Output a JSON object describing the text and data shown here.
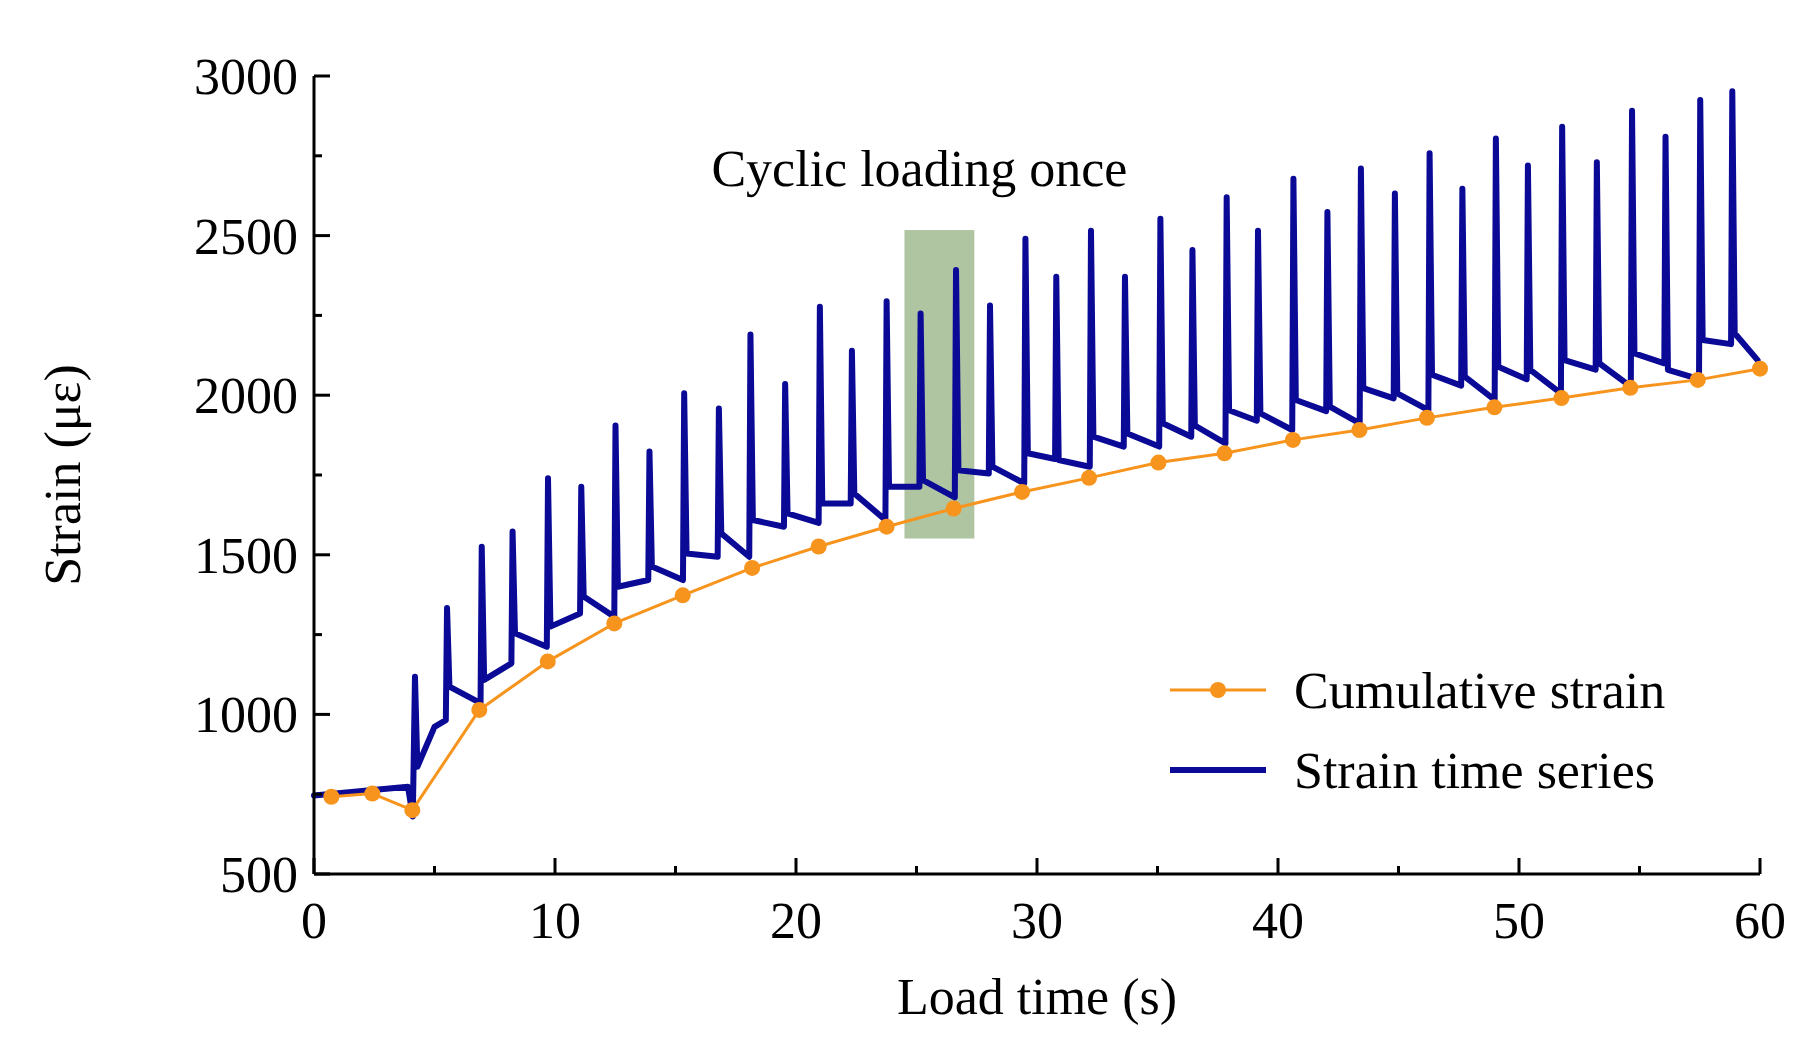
{
  "chart_data": {
    "type": "line",
    "xlabel": "Load time (s)",
    "ylabel": "Strain (με)",
    "xlim": [
      0,
      60
    ],
    "xticks": [
      0,
      {
        "value": 5,
        "label": null
      },
      10,
      {
        "value": 15,
        "label": null
      },
      20,
      {
        "value": 25,
        "label": null
      },
      30,
      {
        "value": 35,
        "label": null
      },
      40,
      {
        "value": 45,
        "label": null
      },
      50,
      {
        "value": 55,
        "label": null
      },
      60
    ],
    "ylim": [
      500,
      3000
    ],
    "yticks": [
      500,
      {
        "value": 750,
        "label": null
      },
      1000,
      {
        "value": 1250,
        "label": null
      },
      1500,
      {
        "value": 1750,
        "label": null
      },
      2000,
      {
        "value": 2250,
        "label": null
      },
      2500,
      {
        "value": 2750,
        "label": null
      },
      3000
    ],
    "legend": "bottom right",
    "grid": false,
    "bands": [
      {
        "axis": "x",
        "from": 24.5,
        "to": 27.4,
        "label": "Cyclic loading once",
        "color": "#7a9c62"
      }
    ],
    "series": [
      {
        "name": "Cumulative strain",
        "color": "#f7941d",
        "marker": "circle",
        "x": [
          0.72,
          2.42,
          4.08,
          6.86,
          9.7,
          12.46,
          15.3,
          18.18,
          20.94,
          23.76,
          26.54,
          29.38,
          32.16,
          35.04,
          37.78,
          40.62,
          43.38,
          46.18,
          48.98,
          51.76,
          54.62,
          57.42,
          60
        ],
        "values": [
          742,
          752,
          700,
          1014,
          1166,
          1285,
          1373,
          1459,
          1526,
          1588,
          1645,
          1697,
          1741,
          1789,
          1818,
          1860,
          1891,
          1929,
          1962,
          1991,
          2023,
          2048,
          2083
        ]
      },
      {
        "name": "Strain time series",
        "color": "#0a0a96",
        "marker": "none",
        "x": [
          0,
          2,
          3.9,
          4.1,
          4.19,
          4.29,
          5.0,
          5.47,
          5.52,
          5.62,
          6.91,
          6.96,
          7.06,
          8.19,
          8.24,
          8.34,
          9.66,
          9.71,
          9.81,
          11.04,
          11.09,
          11.19,
          12.46,
          12.51,
          12.61,
          13.87,
          13.92,
          14.02,
          15.31,
          15.36,
          15.46,
          16.75,
          16.8,
          16.9,
          18.06,
          18.11,
          18.21,
          19.5,
          19.55,
          19.65,
          20.94,
          20.99,
          21.09,
          22.27,
          22.32,
          22.42,
          23.71,
          23.76,
          23.86,
          25.12,
          25.17,
          25.27,
          26.59,
          26.64,
          26.74,
          28.0,
          28.05,
          28.15,
          29.47,
          29.52,
          29.62,
          30.75,
          30.8,
          30.9,
          32.19,
          32.24,
          32.34,
          33.6,
          33.65,
          33.75,
          35.07,
          35.12,
          35.22,
          36.4,
          36.45,
          36.55,
          37.82,
          37.87,
          37.97,
          39.12,
          39.17,
          39.27,
          40.59,
          40.64,
          40.74,
          42.0,
          42.05,
          42.15,
          43.39,
          43.44,
          43.54,
          44.8,
          44.85,
          44.95,
          46.24,
          46.29,
          46.39,
          47.6,
          47.65,
          47.75,
          48.99,
          49.04,
          49.14,
          50.32,
          50.37,
          50.47,
          51.74,
          51.79,
          51.89,
          53.18,
          53.23,
          53.33,
          54.64,
          54.69,
          54.79,
          56.03,
          56.08,
          56.18,
          57.47,
          57.52,
          57.62,
          58.8,
          58.85,
          58.95,
          59.9
        ],
        "values": [
          746,
          760,
          773,
          680,
          1118,
          836,
          961,
          982,
          1333,
          1087,
          1035,
          1525,
          1108,
          1160,
          1573,
          1254,
          1212,
          1740,
          1275,
          1316,
          1713,
          1369,
          1306,
          1905,
          1400,
          1421,
          1824,
          1463,
          1421,
          2006,
          1504,
          1494,
          1958,
          1567,
          1494,
          2190,
          1609,
          1588,
          2035,
          1630,
          1600,
          2277,
          1661,
          1661,
          2139,
          1692,
          1609,
          2294,
          1713,
          1713,
          2256,
          1734,
          1680,
          2392,
          1765,
          1755,
          2281,
          1776,
          1724,
          2490,
          1818,
          1800,
          2371,
          1797,
          1776,
          2515,
          1870,
          1839,
          2371,
          1880,
          1839,
          2553,
          1912,
          1870,
          2455,
          1905,
          1849,
          2620,
          1953,
          1920,
          2515,
          1943,
          1891,
          2678,
          1985,
          1950,
          2574,
          1964,
          1912,
          2710,
          2022,
          1990,
          2632,
          2006,
          1953,
          2758,
          2064,
          2030,
          2647,
          2058,
          1985,
          2804,
          2089,
          2050,
          2720,
          2079,
          2006,
          2841,
          2110,
          2080,
          2730,
          2100,
          2027,
          2891,
          2131,
          2100,
          2810,
          2079,
          2050,
          2925,
          2173,
          2160,
          2952,
          2194,
          2110
        ]
      }
    ]
  }
}
